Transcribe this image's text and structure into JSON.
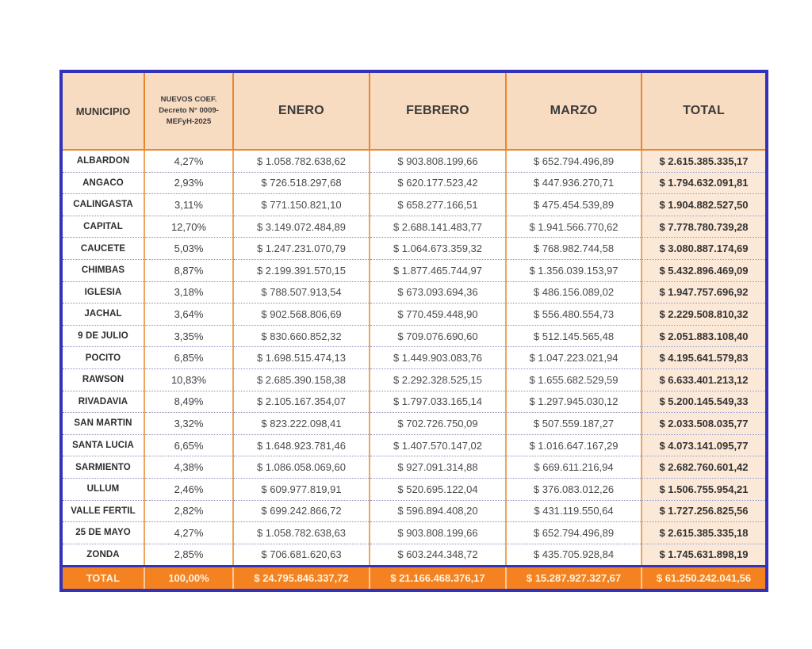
{
  "table": {
    "headers": {
      "municipio": "MUNICIPIO",
      "coef_line1": "NUEVOS COEF.",
      "coef_line2": "Decreto N° 0009-",
      "coef_line3": "MEFyH-2025",
      "enero": "ENERO",
      "febrero": "FEBRERO",
      "marzo": "MARZO",
      "total": "TOTAL"
    },
    "rows": [
      {
        "municipio": "ALBARDON",
        "coef": "4,27%",
        "enero": "$ 1.058.782.638,62",
        "febrero": "$ 903.808.199,66",
        "marzo": "$ 652.794.496,89",
        "total": "$ 2.615.385.335,17"
      },
      {
        "municipio": "ANGACO",
        "coef": "2,93%",
        "enero": "$ 726.518.297,68",
        "febrero": "$ 620.177.523,42",
        "marzo": "$ 447.936.270,71",
        "total": "$ 1.794.632.091,81"
      },
      {
        "municipio": "CALINGASTA",
        "coef": "3,11%",
        "enero": "$ 771.150.821,10",
        "febrero": "$ 658.277.166,51",
        "marzo": "$ 475.454.539,89",
        "total": "$ 1.904.882.527,50"
      },
      {
        "municipio": "CAPITAL",
        "coef": "12,70%",
        "enero": "$ 3.149.072.484,89",
        "febrero": "$ 2.688.141.483,77",
        "marzo": "$ 1.941.566.770,62",
        "total": "$ 7.778.780.739,28"
      },
      {
        "municipio": "CAUCETE",
        "coef": "5,03%",
        "enero": "$ 1.247.231.070,79",
        "febrero": "$ 1.064.673.359,32",
        "marzo": "$ 768.982.744,58",
        "total": "$ 3.080.887.174,69"
      },
      {
        "municipio": "CHIMBAS",
        "coef": "8,87%",
        "enero": "$ 2.199.391.570,15",
        "febrero": "$ 1.877.465.744,97",
        "marzo": "$ 1.356.039.153,97",
        "total": "$ 5.432.896.469,09"
      },
      {
        "municipio": "IGLESIA",
        "coef": "3,18%",
        "enero": "$ 788.507.913,54",
        "febrero": "$ 673.093.694,36",
        "marzo": "$ 486.156.089,02",
        "total": "$ 1.947.757.696,92"
      },
      {
        "municipio": "JACHAL",
        "coef": "3,64%",
        "enero": "$ 902.568.806,69",
        "febrero": "$ 770.459.448,90",
        "marzo": "$ 556.480.554,73",
        "total": "$ 2.229.508.810,32"
      },
      {
        "municipio": "9 DE JULIO",
        "coef": "3,35%",
        "enero": "$ 830.660.852,32",
        "febrero": "$ 709.076.690,60",
        "marzo": "$ 512.145.565,48",
        "total": "$ 2.051.883.108,40"
      },
      {
        "municipio": "POCITO",
        "coef": "6,85%",
        "enero": "$ 1.698.515.474,13",
        "febrero": "$ 1.449.903.083,76",
        "marzo": "$ 1.047.223.021,94",
        "total": "$ 4.195.641.579,83"
      },
      {
        "municipio": "RAWSON",
        "coef": "10,83%",
        "enero": "$ 2.685.390.158,38",
        "febrero": "$ 2.292.328.525,15",
        "marzo": "$ 1.655.682.529,59",
        "total": "$ 6.633.401.213,12"
      },
      {
        "municipio": "RIVADAVIA",
        "coef": "8,49%",
        "enero": "$ 2.105.167.354,07",
        "febrero": "$ 1.797.033.165,14",
        "marzo": "$ 1.297.945.030,12",
        "total": "$ 5.200.145.549,33"
      },
      {
        "municipio": "SAN MARTIN",
        "coef": "3,32%",
        "enero": "$ 823.222.098,41",
        "febrero": "$ 702.726.750,09",
        "marzo": "$ 507.559.187,27",
        "total": "$ 2.033.508.035,77"
      },
      {
        "municipio": "SANTA LUCIA",
        "coef": "6,65%",
        "enero": "$ 1.648.923.781,46",
        "febrero": "$ 1.407.570.147,02",
        "marzo": "$ 1.016.647.167,29",
        "total": "$ 4.073.141.095,77"
      },
      {
        "municipio": "SARMIENTO",
        "coef": "4,38%",
        "enero": "$ 1.086.058.069,60",
        "febrero": "$ 927.091.314,88",
        "marzo": "$ 669.611.216,94",
        "total": "$ 2.682.760.601,42"
      },
      {
        "municipio": "ULLUM",
        "coef": "2,46%",
        "enero": "$ 609.977.819,91",
        "febrero": "$ 520.695.122,04",
        "marzo": "$ 376.083.012,26",
        "total": "$ 1.506.755.954,21"
      },
      {
        "municipio": "VALLE FERTIL",
        "coef": "2,82%",
        "enero": "$ 699.242.866,72",
        "febrero": "$ 596.894.408,20",
        "marzo": "$ 431.119.550,64",
        "total": "$ 1.727.256.825,56"
      },
      {
        "municipio": "25 DE MAYO",
        "coef": "4,27%",
        "enero": "$ 1.058.782.638,63",
        "febrero": "$ 903.808.199,66",
        "marzo": "$ 652.794.496,89",
        "total": "$ 2.615.385.335,18"
      },
      {
        "municipio": "ZONDA",
        "coef": "2,85%",
        "enero": "$ 706.681.620,63",
        "febrero": "$ 603.244.348,72",
        "marzo": "$ 435.705.928,84",
        "total": "$ 1.745.631.898,19"
      }
    ],
    "total_row": {
      "label": "TOTAL",
      "coef": "100,00%",
      "enero": "$ 24.795.846.337,72",
      "febrero": "$ 21.166.468.376,17",
      "marzo": "$ 15.287.927.327,67",
      "total": "$ 61.250.242.041,56"
    }
  },
  "colors": {
    "header_bg": "#f8dcc2",
    "total_column_bg": "#fbe8d7",
    "grid_orange": "#e8862d",
    "outer_border_blue": "#3232bb",
    "total_row_bg": "#f58220",
    "total_row_text": "#fcf3e2",
    "dotted_separator": "#8d8dbb",
    "body_text": "#4a4a4a"
  }
}
